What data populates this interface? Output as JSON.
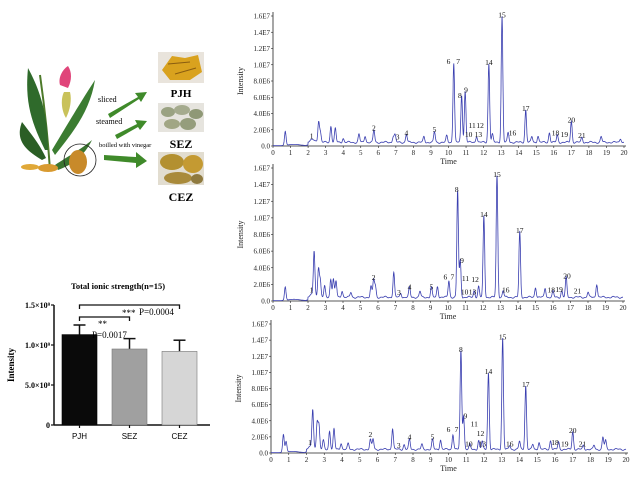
{
  "illustration": {
    "steps": [
      "sliced",
      "steamed",
      "boilled with vinegar"
    ],
    "products": [
      "PJH",
      "SEZ",
      "CEZ"
    ],
    "colors": {
      "PJH": "#d9a21e",
      "SEZ": "#9aa282",
      "CEZ": "#b39030",
      "arrow": "#3f8a2a"
    }
  },
  "chart_data": [
    {
      "type": "line",
      "xlabel": "Time",
      "ylabel": "Intensity",
      "xlim": [
        0,
        20
      ],
      "ylim": [
        0,
        16000000
      ],
      "xticks": [
        "0",
        "1",
        "2",
        "3",
        "4",
        "5",
        "6",
        "7",
        "8",
        "9",
        "10",
        "11",
        "12",
        "13",
        "14",
        "15",
        "16",
        "17",
        "18",
        "19",
        "20"
      ],
      "yticks": [
        "0.0",
        "2.0E6",
        "4.0E6",
        "6.0E6",
        "8.0E6",
        "1.0E7",
        "1.2E7",
        "1.4E7",
        "1.6E7"
      ],
      "color": "#3a3fb0",
      "peaks": [
        [
          0.7,
          1700000.0
        ],
        [
          2.6,
          2600000.0
        ],
        [
          2.7,
          1200000.0
        ],
        [
          3.3,
          2000000.0
        ],
        [
          3.55,
          1700000.0
        ],
        [
          4.0,
          500000.0
        ],
        [
          4.9,
          1000000.0
        ],
        [
          5.25,
          800000.0
        ],
        [
          5.75,
          1500000.0
        ],
        [
          6.85,
          700000.0
        ],
        [
          6.95,
          900000.0
        ],
        [
          7.6,
          1000000.0
        ],
        [
          8.6,
          700000.0
        ],
        [
          9.2,
          1300000.0
        ],
        [
          9.9,
          800000.0
        ],
        [
          10.3,
          9800000.0
        ],
        [
          10.75,
          5800000.0
        ],
        [
          10.95,
          6300000.0
        ],
        [
          11.6,
          800000.0
        ],
        [
          12.3,
          9700000.0
        ],
        [
          12.5,
          1000000.0
        ],
        [
          13.05,
          15500000.0
        ],
        [
          13.4,
          1200000.0
        ],
        [
          14.4,
          4000000.0
        ],
        [
          14.75,
          700000.0
        ],
        [
          15.1,
          800000.0
        ],
        [
          15.75,
          1200000.0
        ],
        [
          16.2,
          900000.0
        ],
        [
          17.0,
          2600000.0
        ],
        [
          17.6,
          600000.0
        ],
        [
          18.7,
          700000.0
        ],
        [
          19.8,
          500000.0
        ]
      ],
      "labels": [
        [
          "1",
          2.2,
          900000.0
        ],
        [
          "2",
          5.75,
          1900000.0
        ],
        [
          "3",
          7.1,
          800000.0
        ],
        [
          "4",
          7.6,
          1300000.0
        ],
        [
          "5",
          9.2,
          1700000.0
        ],
        [
          "6",
          10.0,
          10100000.0
        ],
        [
          "7",
          10.55,
          10100000.0
        ],
        [
          "8",
          10.65,
          5900000.0
        ],
        [
          "9",
          11.0,
          6600000.0
        ],
        [
          "10",
          11.15,
          1100000.0
        ],
        [
          "11",
          11.35,
          2000000.0
        ],
        [
          "12",
          11.8,
          2100000.0
        ],
        [
          "13",
          11.7,
          1100000.0
        ],
        [
          "14",
          12.3,
          10000000.0
        ],
        [
          "15",
          13.05,
          15800000.0
        ],
        [
          "16",
          13.65,
          1300000.0
        ],
        [
          "17",
          14.4,
          4300000.0
        ],
        [
          "18",
          16.1,
          1300000.0
        ],
        [
          "19",
          16.6,
          1100000.0
        ],
        [
          "20",
          17.0,
          2900000.0
        ],
        [
          "21",
          17.6,
          1000000.0
        ]
      ]
    },
    {
      "type": "line",
      "xlabel": "Time",
      "ylabel": "Intensity",
      "xlim": [
        0,
        20
      ],
      "ylim": [
        0,
        16000000
      ],
      "xticks": [
        "0",
        "1",
        "2",
        "3",
        "4",
        "5",
        "6",
        "7",
        "8",
        "9",
        "10",
        "11",
        "12",
        "13",
        "14",
        "15",
        "16",
        "17",
        "18",
        "19",
        "20"
      ],
      "yticks": [
        "0.0",
        "2.0E6",
        "4.0E6",
        "6.0E6",
        "8.0E6",
        "1.0E7",
        "1.2E7",
        "1.4E7",
        "1.6E7"
      ],
      "color": "#3a3fb0",
      "peaks": [
        [
          0.7,
          1600000.0
        ],
        [
          2.35,
          5300000.0
        ],
        [
          2.6,
          3500000.0
        ],
        [
          2.7,
          2000000.0
        ],
        [
          2.95,
          1300000.0
        ],
        [
          3.3,
          2200000.0
        ],
        [
          3.45,
          2200000.0
        ],
        [
          3.6,
          1900000.0
        ],
        [
          3.95,
          800000.0
        ],
        [
          4.45,
          600000.0
        ],
        [
          5.6,
          1300000.0
        ],
        [
          5.75,
          2100000.0
        ],
        [
          5.85,
          1300000.0
        ],
        [
          6.9,
          3000000.0
        ],
        [
          7.3,
          500000.0
        ],
        [
          7.8,
          1200000.0
        ],
        [
          8.4,
          700000.0
        ],
        [
          9.05,
          1200000.0
        ],
        [
          9.4,
          1300000.0
        ],
        [
          10.05,
          2000000.0
        ],
        [
          10.55,
          12800000.0
        ],
        [
          10.7,
          4400000.0
        ],
        [
          11.5,
          800000.0
        ],
        [
          11.75,
          1300000.0
        ],
        [
          12.05,
          9800000.0
        ],
        [
          12.8,
          14600000.0
        ],
        [
          13.15,
          800000.0
        ],
        [
          14.1,
          7900000.0
        ],
        [
          15.0,
          1200000.0
        ],
        [
          15.55,
          1100000.0
        ],
        [
          16.0,
          700000.0
        ],
        [
          16.5,
          800000.0
        ],
        [
          16.75,
          2400000.0
        ],
        [
          18.0,
          600000.0
        ],
        [
          18.5,
          1600000.0
        ]
      ],
      "labels": [
        [
          "1",
          2.2,
          1000000.0
        ],
        [
          "2",
          5.75,
          2500000.0
        ],
        [
          "3",
          7.2,
          700000.0
        ],
        [
          "4",
          7.8,
          1400000.0
        ],
        [
          "5",
          9.05,
          1400000.0
        ],
        [
          "6",
          9.85,
          2600000.0
        ],
        [
          "7",
          10.25,
          2600000.0
        ],
        [
          "8",
          10.5,
          13100000.0
        ],
        [
          "9",
          10.8,
          4600000.0
        ],
        [
          "10",
          10.95,
          800000.0
        ],
        [
          "11",
          11.0,
          2400000.0
        ],
        [
          "12",
          11.55,
          2300000.0
        ],
        [
          "13",
          11.4,
          800000.0
        ],
        [
          "14",
          12.05,
          10100000.0
        ],
        [
          "15",
          12.8,
          14900000.0
        ],
        [
          "16",
          13.3,
          1000000.0
        ],
        [
          "17",
          14.1,
          8200000.0
        ],
        [
          "18",
          15.9,
          1000000.0
        ],
        [
          "19",
          16.35,
          1100000.0
        ],
        [
          "20",
          16.8,
          2700000.0
        ],
        [
          "21",
          17.4,
          900000.0
        ]
      ]
    },
    {
      "type": "line",
      "xlabel": "Time",
      "ylabel": "Intensity",
      "xlim": [
        0,
        20
      ],
      "ylim": [
        0,
        16000000
      ],
      "xticks": [
        "0",
        "1",
        "2",
        "3",
        "4",
        "5",
        "6",
        "7",
        "8",
        "9",
        "10",
        "11",
        "12",
        "13",
        "14",
        "15",
        "16",
        "17",
        "18",
        "19",
        "20"
      ],
      "yticks": [
        "0.0",
        "2.0E6",
        "4.0E6",
        "6.0E6",
        "8.0E6",
        "1.0E7",
        "1.2E7",
        "1.4E7",
        "1.6E7"
      ],
      "color": "#3a3fb0",
      "peaks": [
        [
          0.7,
          2200000.0
        ],
        [
          0.85,
          1300000.0
        ],
        [
          2.35,
          4700000.0
        ],
        [
          2.6,
          3400000.0
        ],
        [
          2.7,
          3000000.0
        ],
        [
          2.95,
          1100000.0
        ],
        [
          3.3,
          2300000.0
        ],
        [
          3.55,
          2500000.0
        ],
        [
          3.95,
          800000.0
        ],
        [
          4.35,
          700000.0
        ],
        [
          5.6,
          1200000.0
        ],
        [
          5.75,
          1300000.0
        ],
        [
          6.85,
          2600000.0
        ],
        [
          7.5,
          600000.0
        ],
        [
          7.8,
          1200000.0
        ],
        [
          8.5,
          600000.0
        ],
        [
          9.1,
          1200000.0
        ],
        [
          9.55,
          1200000.0
        ],
        [
          10.25,
          1900000.0
        ],
        [
          10.7,
          12200000.0
        ],
        [
          10.85,
          4200000.0
        ],
        [
          11.2,
          600000.0
        ],
        [
          11.7,
          1100000.0
        ],
        [
          11.9,
          1000000.0
        ],
        [
          12.25,
          9500000.0
        ],
        [
          13.05,
          13800000.0
        ],
        [
          13.45,
          500000.0
        ],
        [
          14.0,
          1000000.0
        ],
        [
          14.35,
          7900000.0
        ],
        [
          14.75,
          600000.0
        ],
        [
          15.1,
          900000.0
        ],
        [
          15.75,
          1100000.0
        ],
        [
          16.2,
          900000.0
        ],
        [
          17.0,
          2200000.0
        ],
        [
          17.6,
          500000.0
        ],
        [
          18.2,
          500000.0
        ],
        [
          18.7,
          1500000.0
        ],
        [
          18.85,
          1100000.0
        ]
      ],
      "labels": [
        [
          "1",
          2.2,
          1000000.0
        ],
        [
          "2",
          5.6,
          2000000.0
        ],
        [
          "3",
          7.2,
          600000.0
        ],
        [
          "4",
          7.8,
          1700000.0
        ],
        [
          "5",
          9.1,
          1700000.0
        ],
        [
          "6",
          10.0,
          2600000.0
        ],
        [
          "7",
          10.45,
          2600000.0
        ],
        [
          "8",
          10.7,
          12500000.0
        ],
        [
          "9",
          10.95,
          4300000.0
        ],
        [
          "10",
          11.15,
          800000.0
        ],
        [
          "11",
          11.45,
          2200000.0
        ],
        [
          "12",
          11.8,
          2100000.0
        ],
        [
          "13",
          11.9,
          800000.0
        ],
        [
          "14",
          12.25,
          9800000.0
        ],
        [
          "15",
          13.05,
          14100000.0
        ],
        [
          "16",
          13.45,
          800000.0
        ],
        [
          "17",
          14.35,
          8200000.0
        ],
        [
          "18",
          16.0,
          1000000.0
        ],
        [
          "19",
          16.55,
          800000.0
        ],
        [
          "20",
          17.0,
          2500000.0
        ],
        [
          "21",
          17.55,
          800000.0
        ]
      ]
    },
    {
      "type": "bar",
      "title": "Total ionic strength(n=15)",
      "ylabel": "Intensity",
      "categories": [
        "PJH",
        "SEZ",
        "CEZ"
      ],
      "values": [
        1130000000.0,
        950000000.0,
        920000000.0
      ],
      "error_upper": [
        1250000000.0,
        1080000000.0,
        1060000000.0
      ],
      "ylim": [
        0,
        1500000000.0
      ],
      "yticks": [
        "0",
        "5.0×10⁸",
        "1.0×10⁹",
        "1.5×10⁹"
      ],
      "colors": [
        "#0a0a0a",
        "#a0a0a0",
        "#d6d6d6"
      ],
      "significance": [
        {
          "pair": [
            "PJH",
            "SEZ"
          ],
          "stars": "**",
          "p": "P=0.0017"
        },
        {
          "pair": [
            "PJH",
            "CEZ"
          ],
          "stars": "***",
          "p": "P=0.0004"
        }
      ]
    }
  ]
}
